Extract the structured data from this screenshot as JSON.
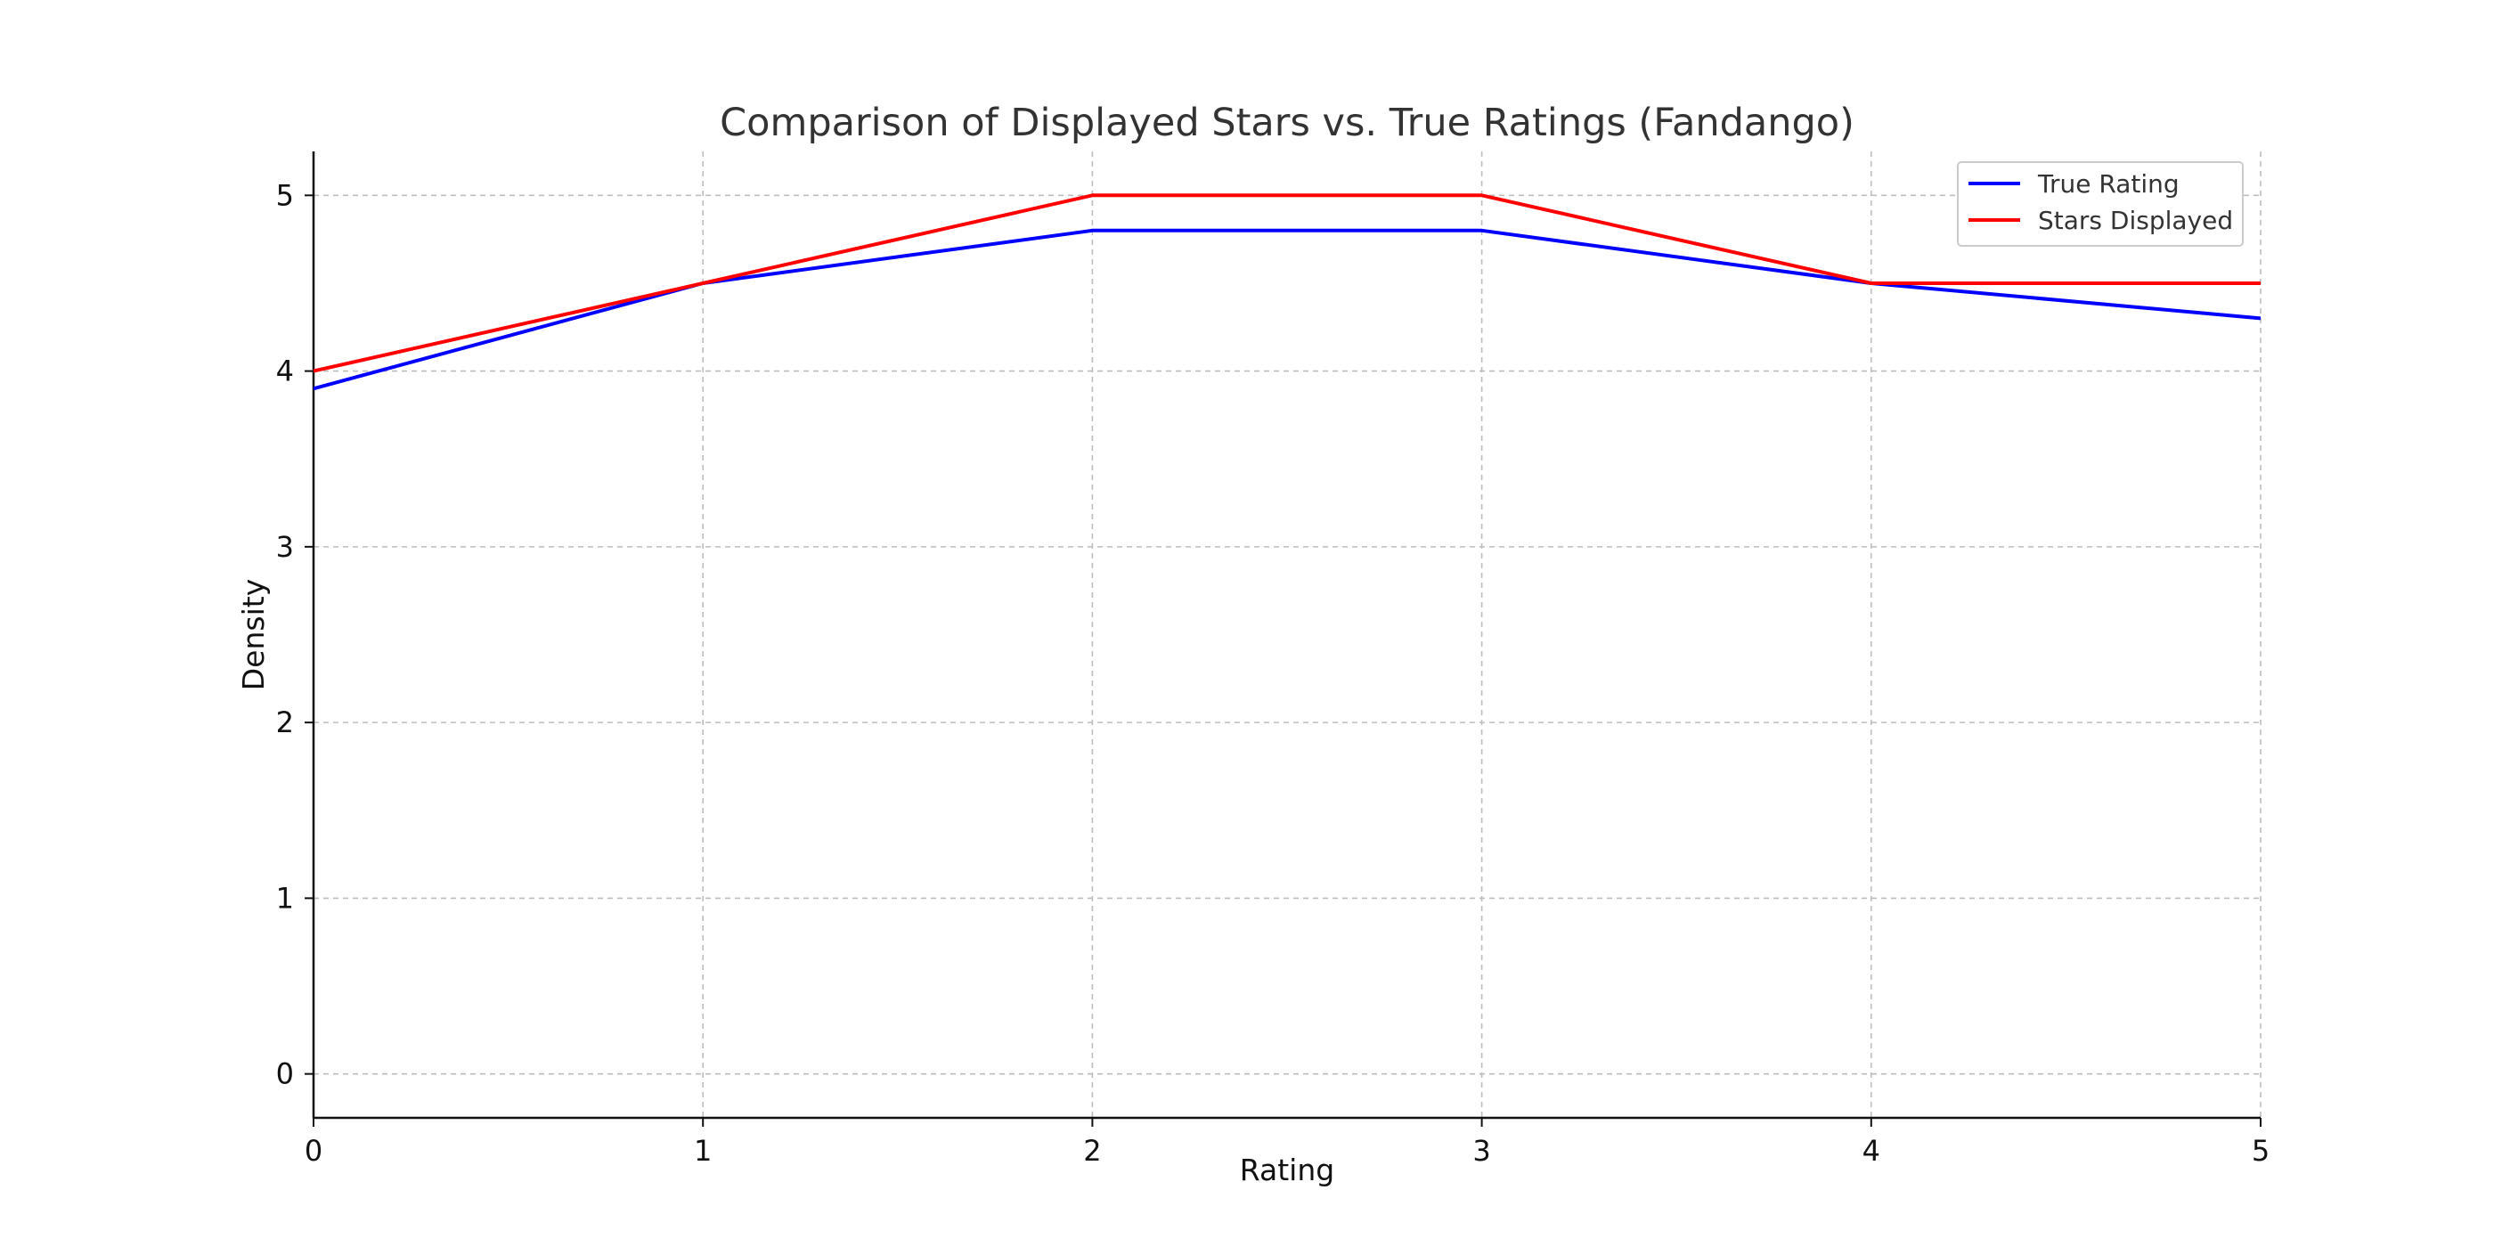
{
  "chart_data": {
    "type": "line",
    "title": "Comparison of Displayed Stars vs. True Ratings (Fandango)",
    "xlabel": "Rating",
    "ylabel": "Density",
    "x": [
      0,
      1,
      2,
      3,
      4,
      5
    ],
    "series": [
      {
        "name": "True Rating",
        "color": "#0000ff",
        "values": [
          3.9,
          4.5,
          4.8,
          4.8,
          4.5,
          4.3
        ]
      },
      {
        "name": "Stars Displayed",
        "color": "#ff0000",
        "values": [
          4.0,
          4.5,
          5.0,
          5.0,
          4.5,
          4.5
        ]
      }
    ],
    "xlim": [
      0,
      5
    ],
    "ylim": [
      -0.25,
      5.25
    ],
    "xticks": [
      0,
      1,
      2,
      3,
      4,
      5
    ],
    "yticks": [
      0,
      1,
      2,
      3,
      4,
      5
    ],
    "grid": true,
    "legend_position": "top-right"
  }
}
